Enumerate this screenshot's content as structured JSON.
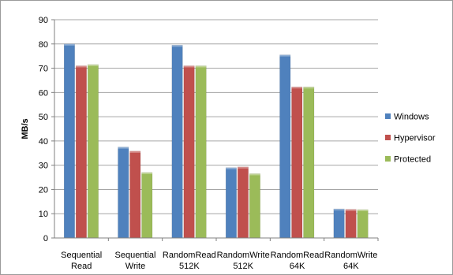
{
  "chart_data": {
    "type": "bar",
    "categories": [
      [
        "Sequential",
        "Read"
      ],
      [
        "Sequential",
        "Write"
      ],
      [
        "RandomRead",
        "512K"
      ],
      [
        "RandomWrite",
        "512K"
      ],
      [
        "RandomRead",
        "64K"
      ],
      [
        "RandomWrite",
        "64K"
      ]
    ],
    "series": [
      {
        "name": "Windows",
        "color": "#4f81bd",
        "values": [
          80,
          37.5,
          79.5,
          29,
          75.5,
          12
        ]
      },
      {
        "name": "Hypervisor",
        "color": "#c0504d",
        "values": [
          71,
          35.8,
          71,
          29.3,
          62.3,
          11.8
        ]
      },
      {
        "name": "Protected",
        "color": "#9bbb59",
        "values": [
          71.5,
          27,
          71,
          26.5,
          62.3,
          11.7
        ]
      }
    ],
    "ylabel": "MB/s",
    "ylim": [
      0,
      90
    ],
    "yticks": [
      0,
      10,
      20,
      30,
      40,
      50,
      60,
      70,
      80,
      90
    ],
    "grid": "horizontal",
    "legend_position": "right"
  }
}
